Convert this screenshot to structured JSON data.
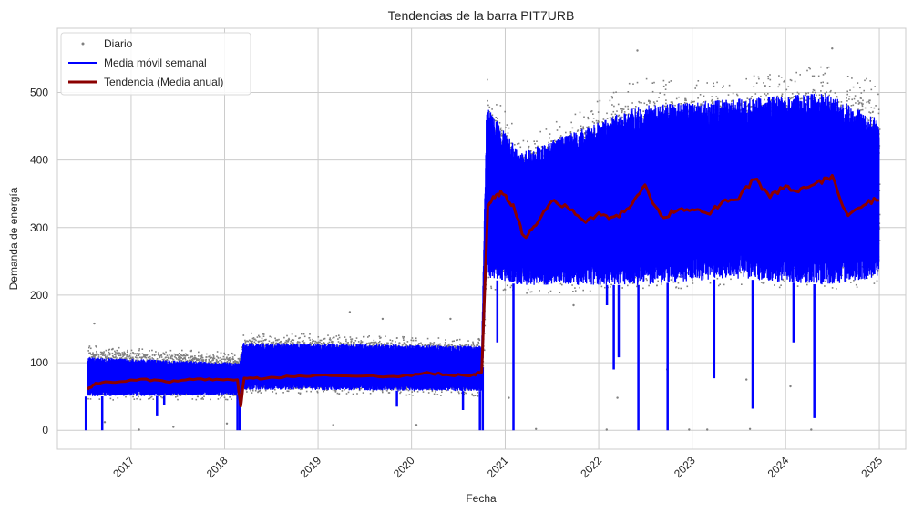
{
  "chart_data": {
    "type": "line",
    "title": "Tendencias de la barra PIT7URB",
    "xlabel": "Fecha",
    "ylabel": "Demanda de energía",
    "x_ticks": [
      "2017",
      "2018",
      "2019",
      "2020",
      "2021",
      "2022",
      "2023",
      "2024",
      "2025"
    ],
    "y_ticks": [
      0,
      100,
      200,
      300,
      400,
      500
    ],
    "xlim": [
      "2016-03-19",
      "2025-04-14"
    ],
    "ylim": [
      -28,
      595
    ],
    "grid": true,
    "legend_position": "top-left",
    "legend": [
      "Diario",
      "Media móvil semanal",
      "Tendencia (Media anual)"
    ],
    "colors": {
      "daily": "#808080",
      "weekly": "#0000ff",
      "trend": "#8b0000",
      "grid": "#cccccc",
      "frame": "#cccccc"
    },
    "series": [
      {
        "name": "Diario",
        "style": "scatter",
        "band": [
          [
            "2016-07-15",
            45,
            125
          ],
          [
            "2018-03-01",
            45,
            115
          ],
          [
            "2018-03-15",
            55,
            145
          ],
          [
            "2020-10-01",
            50,
            135
          ],
          [
            "2020-10-20",
            210,
            520
          ],
          [
            "2021-03-01",
            200,
            430
          ],
          [
            "2022-06-01",
            205,
            520
          ],
          [
            "2023-06-01",
            215,
            520
          ],
          [
            "2024-06-01",
            205,
            540
          ],
          [
            "2024-12-31",
            210,
            515
          ]
        ],
        "outliers": [
          [
            "2016-08-10",
            158
          ],
          [
            "2016-09-20",
            12
          ],
          [
            "2017-02-01",
            1
          ],
          [
            "2017-06-15",
            5
          ],
          [
            "2018-01-10",
            10
          ],
          [
            "2019-03-01",
            8
          ],
          [
            "2019-05-05",
            175
          ],
          [
            "2019-09-10",
            165
          ],
          [
            "2020-06-01",
            165
          ],
          [
            "2020-01-20",
            8
          ],
          [
            "2020-09-20",
            135
          ],
          [
            "2021-01-15",
            48
          ],
          [
            "2021-05-01",
            2
          ],
          [
            "2021-09-25",
            185
          ],
          [
            "2022-02-01",
            1
          ],
          [
            "2022-03-15",
            48
          ],
          [
            "2022-06-01",
            562
          ],
          [
            "2022-09-25",
            90
          ],
          [
            "2022-12-20",
            1
          ],
          [
            "2023-03-01",
            1
          ],
          [
            "2023-08-01",
            75
          ],
          [
            "2023-08-15",
            2
          ],
          [
            "2024-01-20",
            65
          ],
          [
            "2024-04-10",
            1
          ],
          [
            "2024-07-01",
            565
          ]
        ]
      },
      {
        "name": "Media móvil semanal",
        "style": "line",
        "band": [
          [
            "2016-07-15",
            50,
            108
          ],
          [
            "2018-03-01",
            52,
            100
          ],
          [
            "2018-03-15",
            60,
            130
          ],
          [
            "2020-10-01",
            58,
            125
          ],
          [
            "2020-10-20",
            225,
            480
          ],
          [
            "2021-03-01",
            215,
            410
          ],
          [
            "2022-06-01",
            215,
            480
          ],
          [
            "2023-06-01",
            225,
            490
          ],
          [
            "2024-06-01",
            215,
            500
          ],
          [
            "2024-12-31",
            225,
            460
          ]
        ],
        "drops": [
          [
            "2016-07-08",
            0
          ],
          [
            "2016-09-10",
            0
          ],
          [
            "2017-04-12",
            22
          ],
          [
            "2017-05-10",
            38
          ],
          [
            "2018-02-20",
            0
          ],
          [
            "2018-03-01",
            0
          ],
          [
            "2019-11-05",
            35
          ],
          [
            "2020-07-20",
            30
          ],
          [
            "2020-09-24",
            0
          ],
          [
            "2020-10-05",
            0
          ],
          [
            "2020-12-01",
            130
          ],
          [
            "2021-02-02",
            0
          ],
          [
            "2022-02-02",
            185
          ],
          [
            "2022-03-01",
            90
          ],
          [
            "2022-03-20",
            108
          ],
          [
            "2022-06-05",
            0
          ],
          [
            "2022-09-27",
            0
          ],
          [
            "2023-03-28",
            77
          ],
          [
            "2023-08-25",
            32
          ],
          [
            "2024-02-01",
            130
          ],
          [
            "2024-04-22",
            18
          ]
        ]
      },
      {
        "name": "Tendencia (Media anual)",
        "style": "line",
        "x": [
          "2016-07-15",
          "2016-08-15",
          "2016-11-01",
          "2017-03-01",
          "2017-06-01",
          "2017-09-01",
          "2017-12-01",
          "2018-02-20",
          "2018-03-05",
          "2018-03-18",
          "2018-06-01",
          "2018-09-01",
          "2018-12-01",
          "2019-04-01",
          "2019-08-01",
          "2019-12-01",
          "2020-03-01",
          "2020-06-01",
          "2020-09-01",
          "2020-10-01",
          "2020-10-12",
          "2020-10-25",
          "2020-11-15",
          "2020-12-20",
          "2021-02-01",
          "2021-03-15",
          "2021-05-01",
          "2021-07-01",
          "2021-09-01",
          "2021-11-01",
          "2022-01-01",
          "2022-03-01",
          "2022-05-01",
          "2022-07-01",
          "2022-09-01",
          "2022-11-01",
          "2023-01-01",
          "2023-03-01",
          "2023-05-01",
          "2023-07-01",
          "2023-09-01",
          "2023-11-01",
          "2024-01-01",
          "2024-03-01",
          "2024-05-01",
          "2024-07-01",
          "2024-09-01",
          "2024-11-01",
          "2024-12-31"
        ],
        "y": [
          60,
          70,
          72,
          75,
          72,
          76,
          75,
          75,
          35,
          78,
          77,
          79,
          80,
          82,
          80,
          80,
          85,
          82,
          82,
          86,
          200,
          330,
          345,
          352,
          330,
          285,
          305,
          342,
          330,
          310,
          318,
          312,
          330,
          362,
          315,
          325,
          328,
          320,
          338,
          345,
          372,
          348,
          360,
          355,
          365,
          375,
          315,
          335,
          342
        ]
      }
    ]
  }
}
